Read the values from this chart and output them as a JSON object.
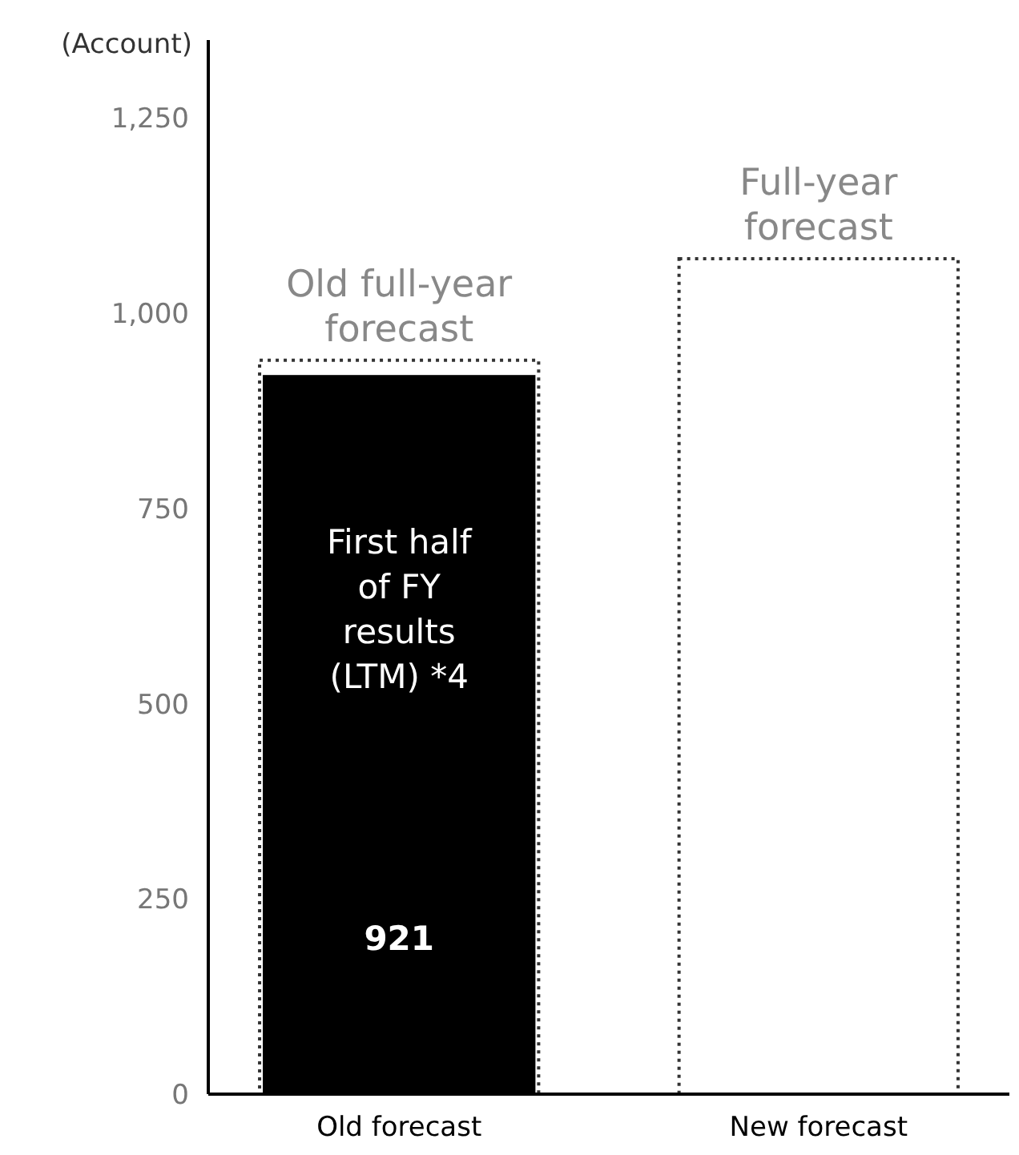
{
  "chart_data": {
    "type": "bar",
    "ylabel": "(Account)",
    "categories": [
      "Old forecast",
      "New forecast"
    ],
    "series": [
      {
        "name": "Old full-year forecast",
        "color": "#333333",
        "values": [
          940,
          null
        ],
        "line_style": "dotted"
      },
      {
        "name": "Full-year forecast",
        "color": "#333333",
        "values": [
          null,
          1070
        ],
        "line_style": "dotted"
      },
      {
        "name": "First half of FY results (LTM) *4",
        "color": "#000000",
        "values": [
          921,
          null
        ],
        "value_labels": [
          "921",
          null
        ]
      }
    ],
    "ylim": [
      0,
      1350
    ],
    "yticks": [
      0,
      {
        "value": 250,
        "label": "250"
      },
      {
        "value": 500,
        "label": "500"
      },
      {
        "value": 750,
        "label": "750"
      },
      {
        "value": 1000,
        "label": "1,000"
      },
      {
        "value": 1250,
        "label": "1,250"
      }
    ],
    "grid": false
  }
}
